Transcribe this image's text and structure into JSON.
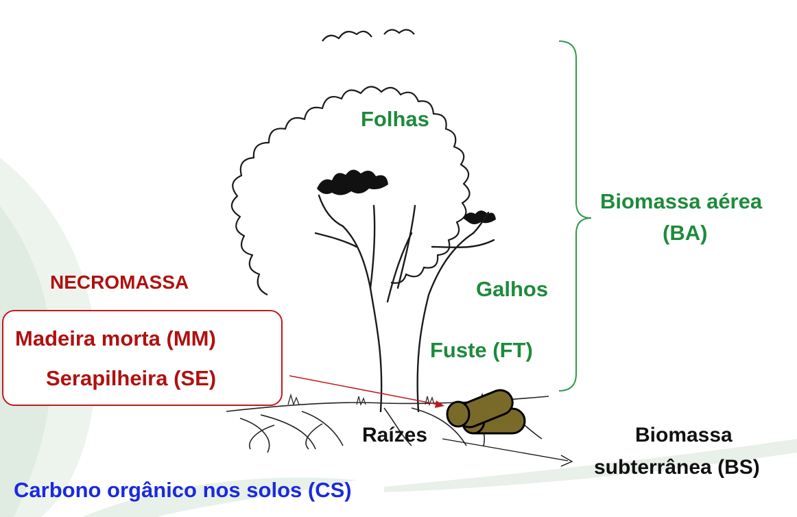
{
  "labels": {
    "folhas": "Folhas",
    "galhos": "Galhos",
    "fuste": "Fuste (FT)",
    "biomassa_aerea_line1": "Biomassa aérea",
    "biomassa_aerea_line2": "(BA)",
    "necromassa": "NECROMASSA",
    "madeira_morta": "Madeira morta (MM)",
    "serapilheira": "Serapilheira (SE)",
    "raizes": "Raízes",
    "biomassa_subterranea_line1": "Biomassa",
    "biomassa_subterranea_line2": "subterrânea (BS)",
    "carbono_solos": "Carbono orgânico nos solos (CS)"
  },
  "colors": {
    "green_text": "#1e8a3c",
    "red_text": "#b01010",
    "blue_text": "#1a2ae0",
    "log_fill": "#7a6a2a",
    "brace": "#2e9a4a"
  }
}
